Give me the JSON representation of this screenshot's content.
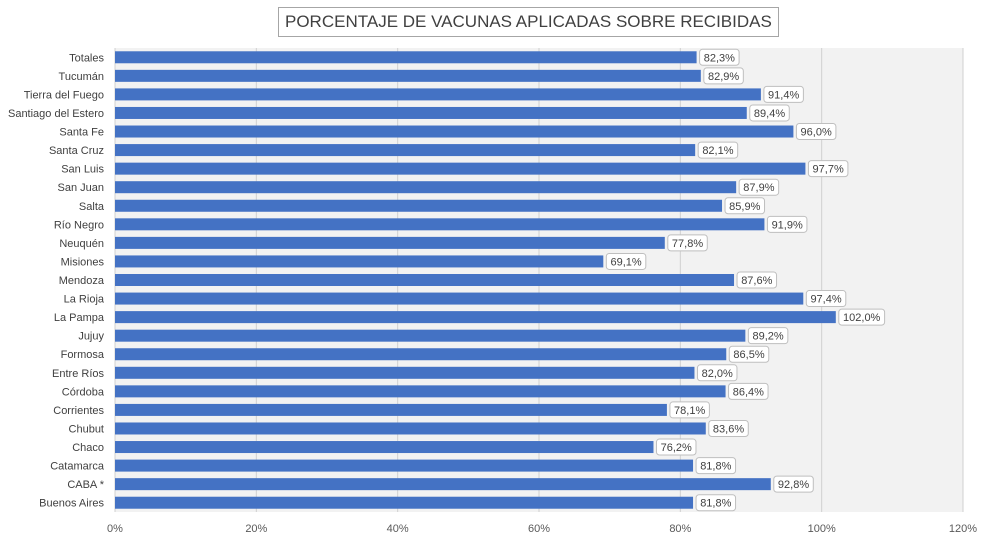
{
  "chart_data": {
    "type": "bar",
    "orientation": "horizontal",
    "title": "PORCENTAJE DE VACUNAS APLICADAS SOBRE RECIBIDAS",
    "xlabel": "",
    "ylabel": "",
    "xlim": [
      0,
      120
    ],
    "grid": true,
    "legend": "none",
    "bar_color": "#4472c4",
    "plot_background": "#f2f2f2",
    "ticks": [
      "0%",
      "20%",
      "40%",
      "60%",
      "80%",
      "100%",
      "120%"
    ],
    "tick_values": [
      0,
      20,
      40,
      60,
      80,
      100,
      120
    ],
    "categories": [
      "Totales",
      "Tucumán",
      "Tierra del Fuego",
      "Santiago del Estero",
      "Santa Fe",
      "Santa Cruz",
      "San Luis",
      "San Juan",
      "Salta",
      "Río Negro",
      "Neuquén",
      "Misiones",
      "Mendoza",
      "La Rioja",
      "La Pampa",
      "Jujuy",
      "Formosa",
      "Entre Ríos",
      "Córdoba",
      "Corrientes",
      "Chubut",
      "Chaco",
      "Catamarca",
      "CABA *",
      "Buenos Aires"
    ],
    "values": [
      82.3,
      82.9,
      91.4,
      89.4,
      96.0,
      82.1,
      97.7,
      87.9,
      85.9,
      91.9,
      77.8,
      69.1,
      87.6,
      97.4,
      102.0,
      89.2,
      86.5,
      82.0,
      86.4,
      78.1,
      83.6,
      76.2,
      81.8,
      92.8,
      81.8
    ],
    "labels": [
      "82,3%",
      "82,9%",
      "91,4%",
      "89,4%",
      "96,0%",
      "82,1%",
      "97,7%",
      "87,9%",
      "85,9%",
      "91,9%",
      "77,8%",
      "69,1%",
      "87,6%",
      "97,4%",
      "102,0%",
      "89,2%",
      "86,5%",
      "82,0%",
      "86,4%",
      "78,1%",
      "83,6%",
      "76,2%",
      "81,8%",
      "92,8%",
      "81,8%"
    ]
  }
}
